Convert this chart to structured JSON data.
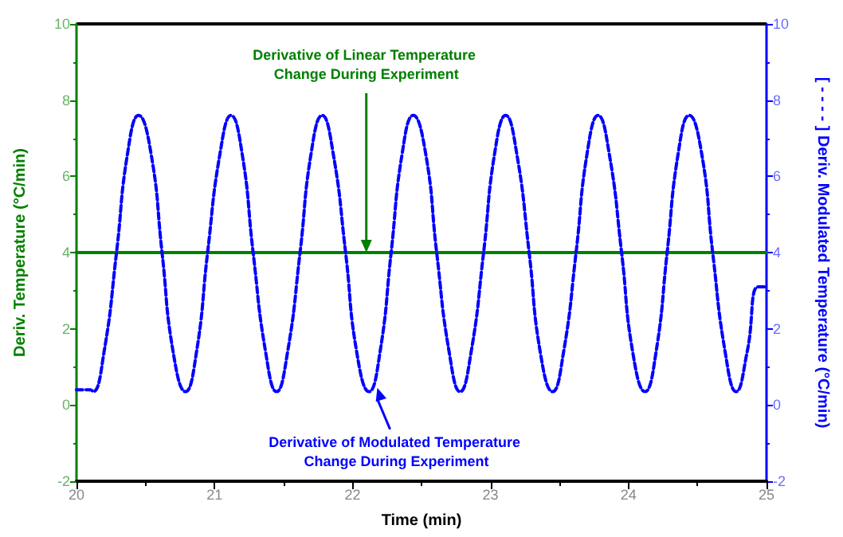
{
  "chart_data": {
    "type": "line",
    "xlabel": "Time (min)",
    "ylabel": "Deriv. Temperature (°C/min)",
    "y2label": "[ - - - - ] Deriv. Modulated Temperature (°C/min)",
    "xlim": [
      20,
      25
    ],
    "xticks": [
      20,
      21,
      22,
      23,
      24,
      25
    ],
    "ylim": [
      -2,
      10
    ],
    "yticks": [
      -2,
      0,
      2,
      4,
      6,
      8,
      10
    ],
    "y2lim": [
      -2,
      10
    ],
    "y2ticks": [
      -2,
      0,
      2,
      4,
      6,
      8,
      10
    ],
    "grid": false,
    "marker": "none",
    "series": [
      {
        "color": "#008000",
        "axis": "y",
        "line_style": "solid",
        "x": [
          20,
          25
        ],
        "values": [
          4,
          4
        ]
      },
      {
        "color": "#0000ff",
        "axis": "y2",
        "line_style": "dashed",
        "x": [
          20.0,
          20.1,
          20.12,
          20.2,
          20.29,
          20.37,
          20.45,
          20.54,
          20.62,
          20.7,
          20.79,
          20.87,
          20.95,
          21.04,
          21.12,
          21.2,
          21.28,
          21.37,
          21.45,
          21.53,
          21.62,
          21.7,
          21.78,
          21.86,
          21.95,
          22.03,
          22.12,
          22.2,
          22.28,
          22.36,
          22.44,
          22.53,
          22.61,
          22.7,
          22.78,
          22.86,
          22.95,
          23.03,
          23.11,
          23.19,
          23.28,
          23.36,
          23.45,
          23.53,
          23.62,
          23.7,
          23.78,
          23.86,
          23.95,
          24.03,
          24.12,
          24.2,
          24.28,
          24.36,
          24.44,
          24.53,
          24.61,
          24.7,
          24.78,
          24.86,
          24.94,
          25.0
        ],
        "values": [
          0.4,
          0.4,
          0.35,
          1.4,
          4.0,
          6.6,
          7.6,
          6.6,
          4.0,
          1.4,
          0.35,
          1.4,
          4.0,
          6.6,
          7.6,
          6.6,
          4.0,
          1.4,
          0.35,
          1.4,
          4.0,
          6.6,
          7.6,
          6.6,
          4.0,
          1.4,
          0.35,
          1.4,
          4.0,
          6.6,
          7.6,
          6.6,
          4.0,
          1.4,
          0.35,
          1.4,
          4.0,
          6.6,
          7.6,
          6.6,
          4.0,
          1.4,
          0.35,
          1.4,
          4.0,
          6.6,
          7.6,
          6.6,
          4.0,
          1.4,
          0.35,
          1.4,
          4.0,
          6.6,
          7.6,
          6.6,
          4.0,
          1.4,
          0.35,
          1.4,
          3.1,
          3.1
        ]
      }
    ],
    "annotations": [
      {
        "text": "Derivative of Linear Temperature Change During Experiment",
        "x": 22.1,
        "y": 4
      },
      {
        "text": "Derivative of Modulated Temperature Change During Experiment",
        "x": 22.18,
        "y": 0.45
      }
    ]
  }
}
